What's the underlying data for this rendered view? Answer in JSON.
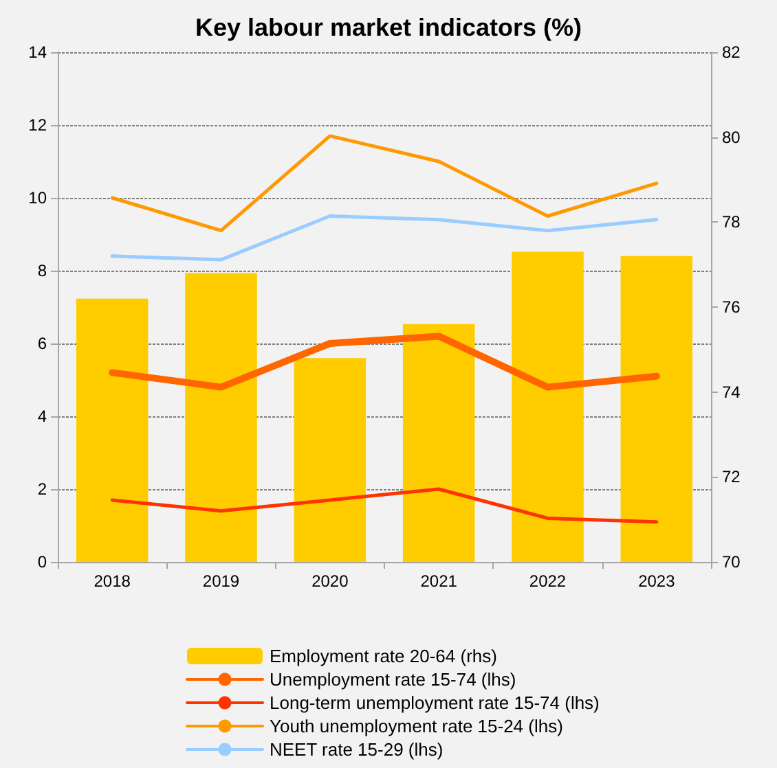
{
  "chart_data": {
    "type": "line",
    "title": "Key labour market indicators (%)",
    "categories": [
      "2018",
      "2019",
      "2020",
      "2021",
      "2022",
      "2023"
    ],
    "series": [
      {
        "name": "Employment rate 20-64 (rhs)",
        "type": "bar",
        "axis": "y2",
        "color": "#ffcc00",
        "values": [
          76.2,
          76.8,
          74.8,
          75.6,
          77.3,
          77.2
        ]
      },
      {
        "name": "Unemployment rate 15-74 (lhs)",
        "color": "#ff6600",
        "values": [
          5.2,
          4.8,
          6.0,
          6.2,
          4.8,
          5.1
        ]
      },
      {
        "name": "Long-term unemployment rate 15-74 (lhs)",
        "color": "#ff3300",
        "values": [
          1.7,
          1.4,
          1.7,
          2.0,
          1.2,
          1.1
        ]
      },
      {
        "name": "Youth unemployment rate 15-24 (lhs)",
        "color": "#ff9900",
        "values": [
          10.0,
          9.1,
          11.7,
          11.0,
          9.5,
          10.4
        ]
      },
      {
        "name": "NEET rate 15-29 (lhs)",
        "color": "#99ccff",
        "values": [
          8.4,
          8.3,
          9.5,
          9.4,
          9.1,
          9.4
        ]
      }
    ],
    "ylim": [
      0,
      14
    ],
    "yticks": [
      0,
      2,
      4,
      6,
      8,
      10,
      12,
      14
    ],
    "y2lim": [
      70,
      82
    ],
    "y2ticks": [
      70,
      72,
      74,
      76,
      78,
      80,
      82
    ],
    "grid": "y",
    "legend": "bottom",
    "marker": "none",
    "line_style": "solid"
  }
}
